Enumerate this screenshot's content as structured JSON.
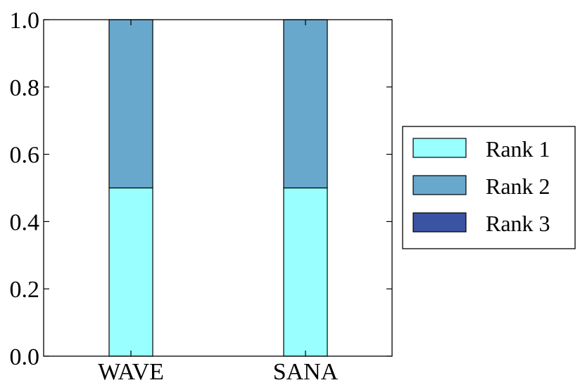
{
  "chart_data": {
    "type": "bar",
    "stacked": true,
    "categories": [
      "WAVE",
      "SANA"
    ],
    "series": [
      {
        "name": "Rank 1",
        "values": [
          0.5,
          0.5
        ],
        "color": "#99ffff"
      },
      {
        "name": "Rank 2",
        "values": [
          0.5,
          0.5
        ],
        "color": "#69a8cd"
      },
      {
        "name": "Rank 3",
        "values": [
          0.0,
          0.0
        ],
        "color": "#3a53a3"
      }
    ],
    "ylim": [
      0,
      1.0
    ],
    "yticks": [
      "0.0",
      "0.2",
      "0.4",
      "0.6",
      "0.8",
      "1.0"
    ],
    "grid": false,
    "legend_position": "right"
  }
}
